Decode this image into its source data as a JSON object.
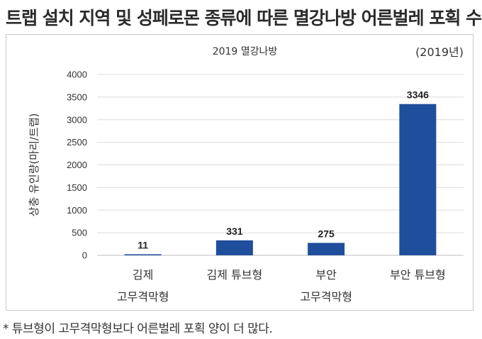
{
  "headline": "트랩 설치 지역 및 성페로몬 종류에 따른 멸강나방 어른벌레 포획 수",
  "footnote": "* 튜브형이 고무격막형보다 어른벌레 포획 양이 더 많다.",
  "colors": {
    "bar": "#1f4e9c",
    "grid": "#dcdcdc",
    "axis": "#bdbdbd"
  },
  "chart_data": {
    "type": "bar",
    "title": "2019 멸강나방",
    "note": "(2019년)",
    "ylabel": "상충 유인량(마리/트랩)",
    "xlabel": "",
    "ylim": [
      0,
      4000
    ],
    "yticks": [
      0,
      500,
      1000,
      1500,
      2000,
      2500,
      3000,
      3500,
      4000
    ],
    "grid": true,
    "categories": [
      [
        "김제",
        "고무격막형"
      ],
      [
        "김제 튜브형"
      ],
      [
        "부안",
        "고무격막형"
      ],
      [
        "부안 튜브형"
      ]
    ],
    "values": [
      11,
      331,
      275,
      3346
    ],
    "data_labels": [
      "11",
      "331",
      "275",
      "3346"
    ]
  }
}
